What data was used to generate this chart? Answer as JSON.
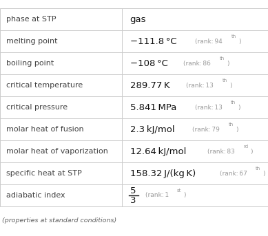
{
  "rows": [
    {
      "label": "phase at STP",
      "value": "gas",
      "rank": "",
      "sup": "",
      "fraction": false
    },
    {
      "label": "melting point",
      "value": "−111.8 °C",
      "rank": "94",
      "sup": "th",
      "fraction": false
    },
    {
      "label": "boiling point",
      "value": "−108 °C",
      "rank": "86",
      "sup": "th",
      "fraction": false
    },
    {
      "label": "critical temperature",
      "value": "289.77 K",
      "rank": "13",
      "sup": "th",
      "fraction": false
    },
    {
      "label": "critical pressure",
      "value": "5.841 MPa",
      "rank": "13",
      "sup": "th",
      "fraction": false
    },
    {
      "label": "molar heat of fusion",
      "value": "2.3 kJ/mol",
      "rank": "79",
      "sup": "th",
      "fraction": false
    },
    {
      "label": "molar heat of vaporization",
      "value": "12.64 kJ/mol",
      "rank": "83",
      "sup": "rd",
      "fraction": false
    },
    {
      "label": "specific heat at STP",
      "value": "158.32 J/(kg K)",
      "rank": "67",
      "sup": "th",
      "fraction": false
    },
    {
      "label": "adiabatic index",
      "value": "5/3",
      "rank": "1",
      "sup": "st",
      "fraction": true
    }
  ],
  "footer": "(properties at standard conditions)",
  "bg_color": "#ffffff",
  "border_color": "#cccccc",
  "label_color": "#404040",
  "value_color": "#111111",
  "rank_color": "#999999",
  "footer_color": "#606060",
  "col_split": 0.455,
  "label_fontsize": 8.0,
  "value_fontsize": 9.5,
  "rank_fontsize": 6.5,
  "sup_fontsize": 5.0,
  "footer_fontsize": 6.8
}
